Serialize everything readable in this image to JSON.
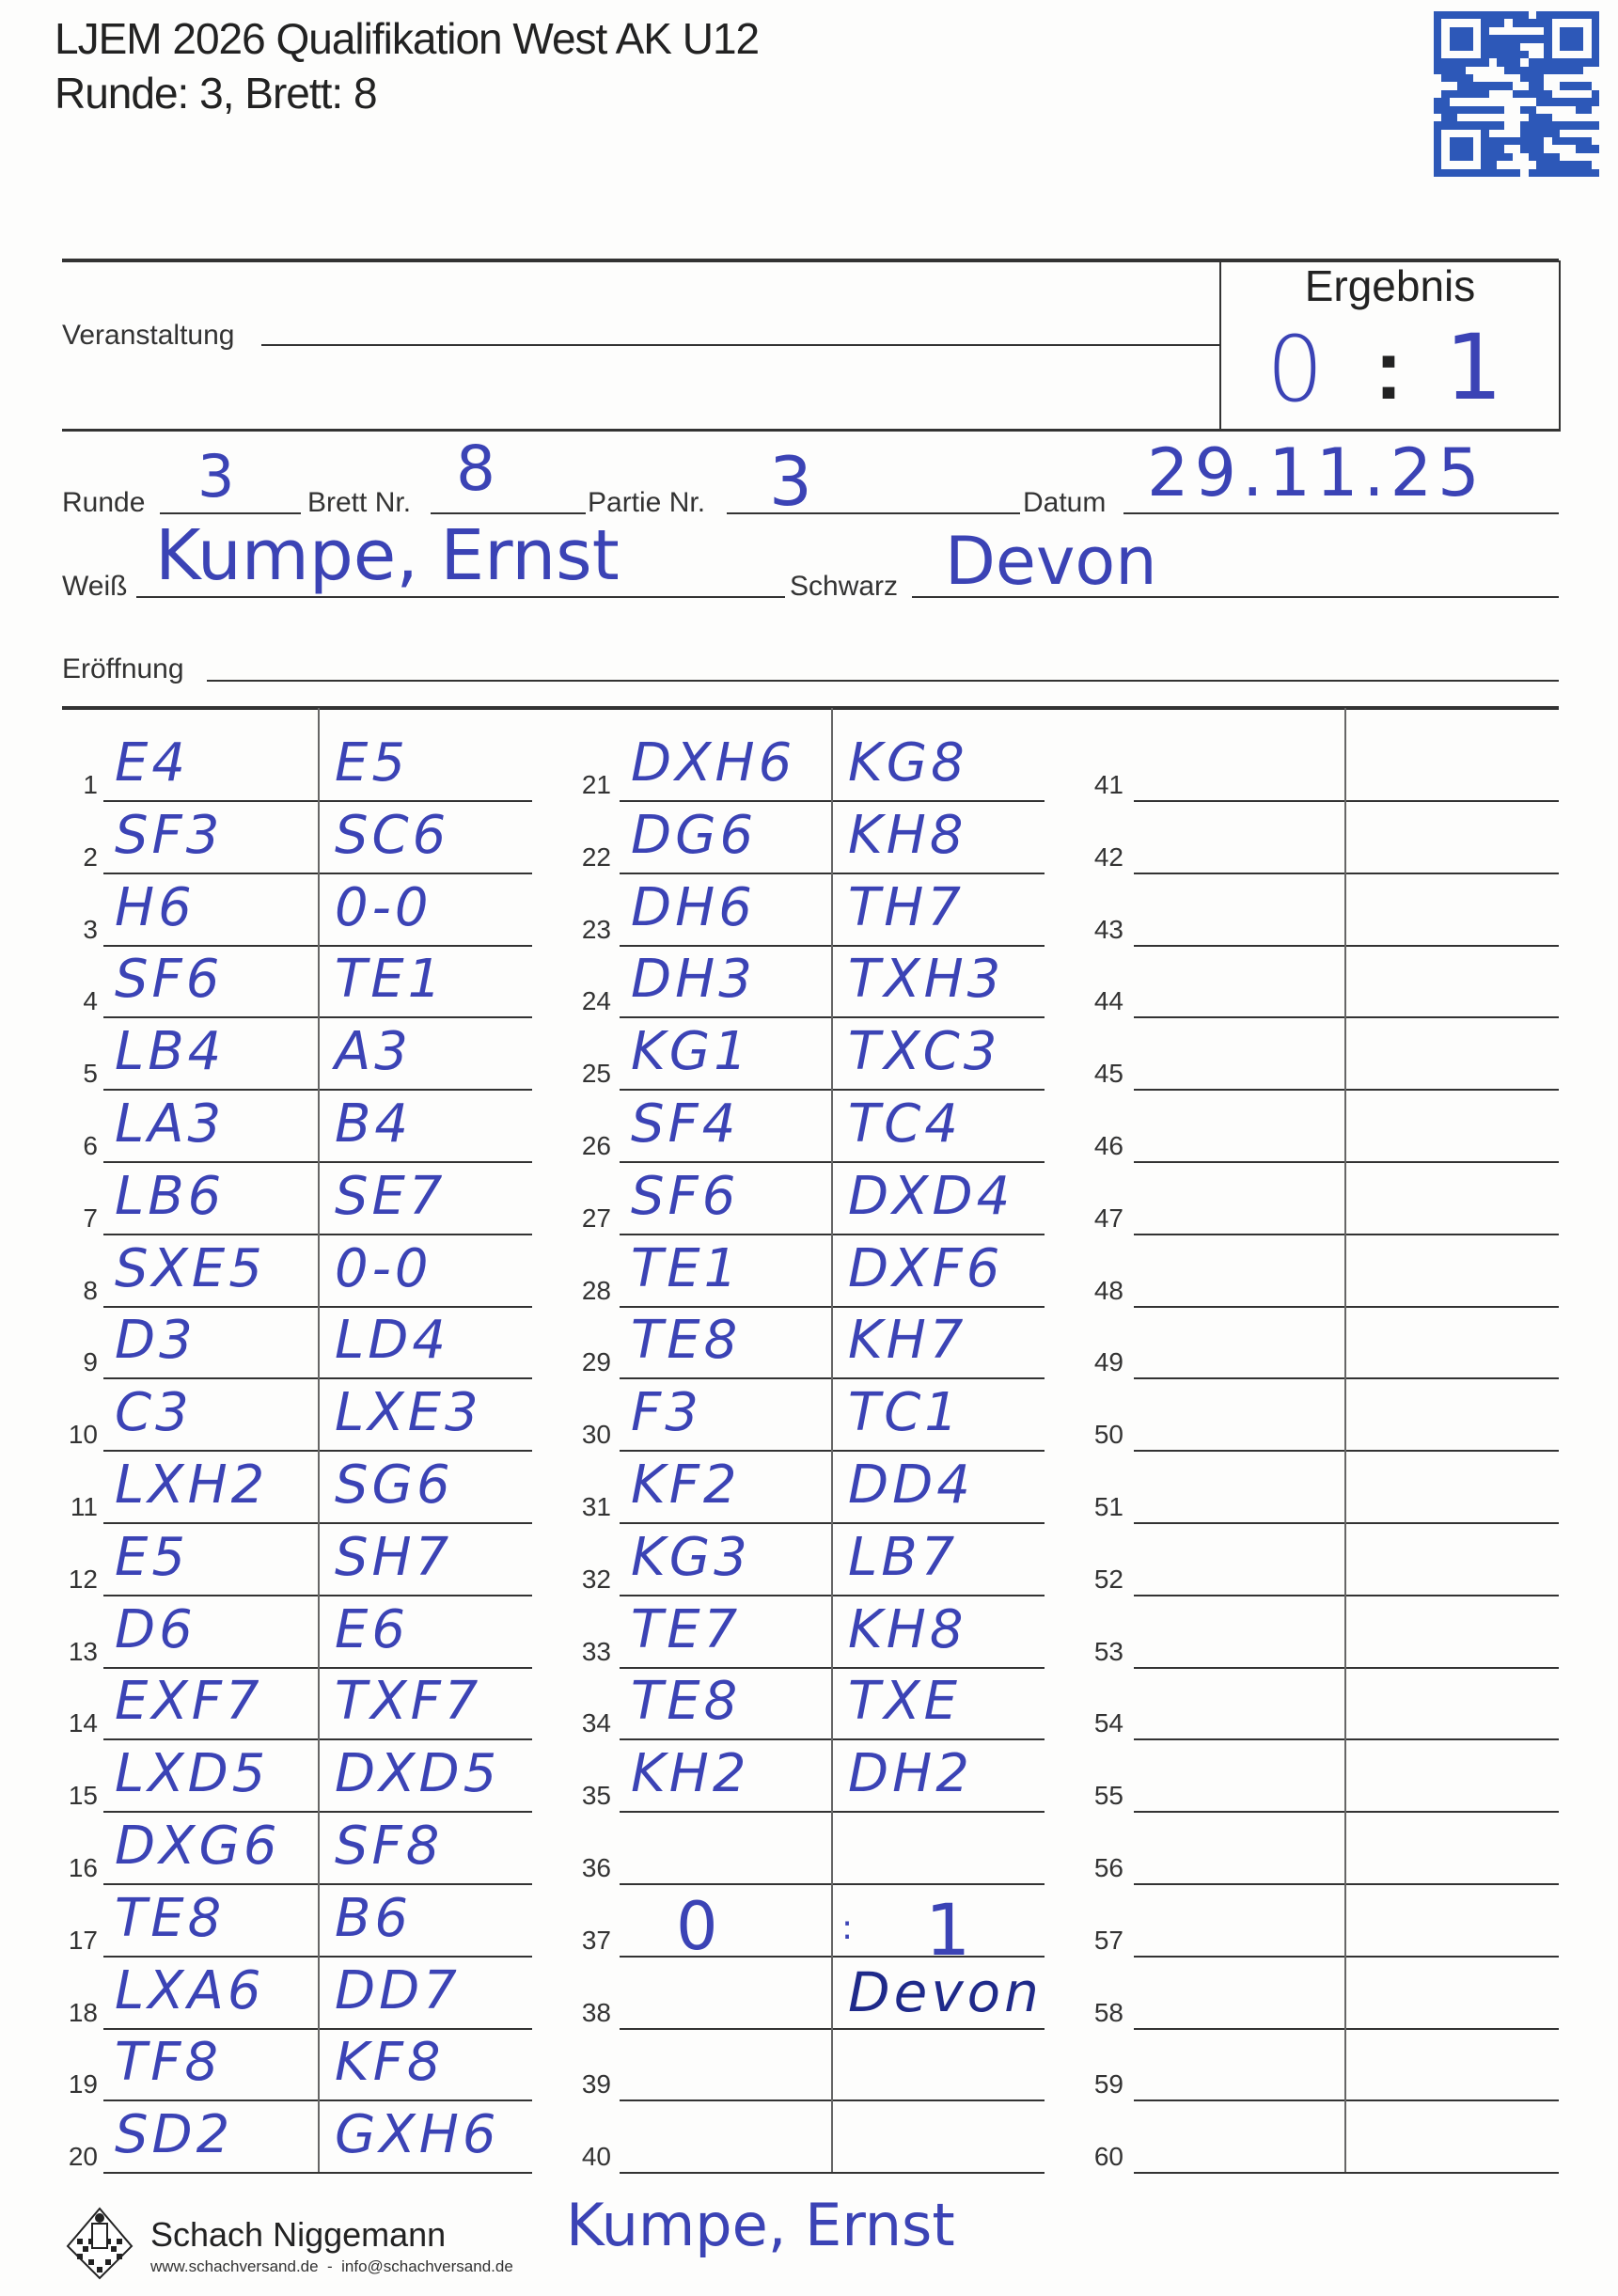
{
  "header": {
    "title": "LJEM 2026 Qualifikation West AK U12",
    "subtitle": "Runde: 3, Brett: 8",
    "qr_icon": "qr-code-icon"
  },
  "form": {
    "veranstaltung_label": "Veranstaltung",
    "veranstaltung_value": "",
    "ergebnis_label": "Ergebnis",
    "ergebnis_white": "0",
    "ergebnis_black": "1",
    "ergebnis_separator": ":",
    "runde_label": "Runde",
    "runde_value": "3",
    "brett_label": "Brett Nr.",
    "brett_value": "8",
    "partie_label": "Partie Nr.",
    "partie_value": "3",
    "datum_label": "Datum",
    "datum_value": "29.11.25",
    "weiss_label": "Weiß",
    "weiss_value": "Kumpe, Ernst",
    "schwarz_label": "Schwarz",
    "schwarz_value": "Devon",
    "eroeffnung_label": "Eröffnung",
    "eroeffnung_value": ""
  },
  "moves": [
    {
      "n": "1",
      "white": "E4",
      "black": "E5"
    },
    {
      "n": "2",
      "white": "SF3",
      "black": "SC6"
    },
    {
      "n": "3",
      "white": "H6",
      "black": "0-0"
    },
    {
      "n": "4",
      "white": "SF6",
      "black": "TE1"
    },
    {
      "n": "5",
      "white": "LB4",
      "black": "A3"
    },
    {
      "n": "6",
      "white": "LA3",
      "black": "B4"
    },
    {
      "n": "7",
      "white": "LB6",
      "black": "SE7"
    },
    {
      "n": "8",
      "white": "SXE5",
      "black": "0-0"
    },
    {
      "n": "9",
      "white": "D3",
      "black": "LD4"
    },
    {
      "n": "10",
      "white": "C3",
      "black": "LXE3"
    },
    {
      "n": "11",
      "white": "LXH2",
      "black": "SG6"
    },
    {
      "n": "12",
      "white": "E5",
      "black": "SH7"
    },
    {
      "n": "13",
      "white": "D6",
      "black": "E6"
    },
    {
      "n": "14",
      "white": "EXF7",
      "black": "TXF7"
    },
    {
      "n": "15",
      "white": "LXD5",
      "black": "DXD5"
    },
    {
      "n": "16",
      "white": "DXG6",
      "black": "SF8"
    },
    {
      "n": "17",
      "white": "TE8",
      "black": "B6"
    },
    {
      "n": "18",
      "white": "LXA6",
      "black": "DD7"
    },
    {
      "n": "19",
      "white": "TF8",
      "black": "KF8"
    },
    {
      "n": "20",
      "white": "SD2",
      "black": "GXH6"
    },
    {
      "n": "21",
      "white": "DXH6",
      "black": "KG8"
    },
    {
      "n": "22",
      "white": "DG6",
      "black": "KH8"
    },
    {
      "n": "23",
      "white": "DH6",
      "black": "TH7"
    },
    {
      "n": "24",
      "white": "DH3",
      "black": "TXH3"
    },
    {
      "n": "25",
      "white": "KG1",
      "black": "TXC3"
    },
    {
      "n": "26",
      "white": "SF4",
      "black": "TC4"
    },
    {
      "n": "27",
      "white": "SF6",
      "black": "DXD4"
    },
    {
      "n": "28",
      "white": "TE1",
      "black": "DXF6"
    },
    {
      "n": "29",
      "white": "TE8",
      "black": "KH7"
    },
    {
      "n": "30",
      "white": "F3",
      "black": "TC1"
    },
    {
      "n": "31",
      "white": "KF2",
      "black": "DD4"
    },
    {
      "n": "32",
      "white": "KG3",
      "black": "LB7"
    },
    {
      "n": "33",
      "white": "TE7",
      "black": "KH8"
    },
    {
      "n": "34",
      "white": "TE8",
      "black": "TXE"
    },
    {
      "n": "35",
      "white": "KH2",
      "black": "DH2"
    },
    {
      "n": "36",
      "white": "",
      "black": ""
    },
    {
      "n": "37",
      "white": "0",
      "black": "1"
    },
    {
      "n": "38",
      "white": "",
      "black": "Devon"
    },
    {
      "n": "39",
      "white": "",
      "black": ""
    },
    {
      "n": "40",
      "white": "",
      "black": ""
    },
    {
      "n": "41",
      "white": "",
      "black": ""
    },
    {
      "n": "42",
      "white": "",
      "black": ""
    },
    {
      "n": "43",
      "white": "",
      "black": ""
    },
    {
      "n": "44",
      "white": "",
      "black": ""
    },
    {
      "n": "45",
      "white": "",
      "black": ""
    },
    {
      "n": "46",
      "white": "",
      "black": ""
    },
    {
      "n": "47",
      "white": "",
      "black": ""
    },
    {
      "n": "48",
      "white": "",
      "black": ""
    },
    {
      "n": "49",
      "white": "",
      "black": ""
    },
    {
      "n": "50",
      "white": "",
      "black": ""
    },
    {
      "n": "51",
      "white": "",
      "black": ""
    },
    {
      "n": "52",
      "white": "",
      "black": ""
    },
    {
      "n": "53",
      "white": "",
      "black": ""
    },
    {
      "n": "54",
      "white": "",
      "black": ""
    },
    {
      "n": "55",
      "white": "",
      "black": ""
    },
    {
      "n": "56",
      "white": "",
      "black": ""
    },
    {
      "n": "57",
      "white": "",
      "black": ""
    },
    {
      "n": "58",
      "white": "",
      "black": ""
    },
    {
      "n": "59",
      "white": "",
      "black": ""
    },
    {
      "n": "60",
      "white": "",
      "black": ""
    }
  ],
  "result_mark": ":",
  "footer": {
    "brand": "Schach Niggemann",
    "contact": "www.schachversand.de  -  info@schachversand.de",
    "logo_icon": "chess-king-logo-icon",
    "signature": "Kumpe, Ernst"
  },
  "colors": {
    "ink": "#3b43b5",
    "qr": "#2d58b8"
  }
}
